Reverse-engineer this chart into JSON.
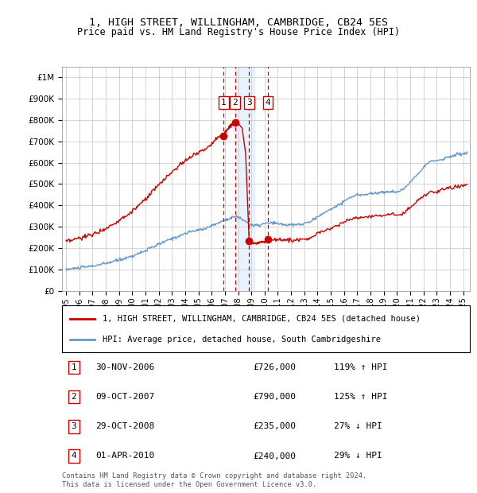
{
  "title": "1, HIGH STREET, WILLINGHAM, CAMBRIDGE, CB24 5ES",
  "subtitle": "Price paid vs. HM Land Registry's House Price Index (HPI)",
  "hpi_label": "HPI: Average price, detached house, South Cambridgeshire",
  "price_label": "1, HIGH STREET, WILLINGHAM, CAMBRIDGE, CB24 5ES (detached house)",
  "footer1": "Contains HM Land Registry data © Crown copyright and database right 2024.",
  "footer2": "This data is licensed under the Open Government Licence v3.0.",
  "transactions": [
    {
      "num": 1,
      "date": "30-NOV-2006",
      "price": 726000,
      "pct": "119%",
      "dir": "↑"
    },
    {
      "num": 2,
      "date": "09-OCT-2007",
      "price": 790000,
      "pct": "125%",
      "dir": "↑"
    },
    {
      "num": 3,
      "date": "29-OCT-2008",
      "price": 235000,
      "pct": "27%",
      "dir": "↓"
    },
    {
      "num": 4,
      "date": "01-APR-2010",
      "price": 240000,
      "pct": "29%",
      "dir": "↓"
    }
  ],
  "transaction_dates_decimal": [
    2006.917,
    2007.775,
    2008.831,
    2010.25
  ],
  "transaction_prices": [
    726000,
    790000,
    235000,
    240000
  ],
  "shade_start": 2007.775,
  "shade_end": 2009.25,
  "ylim": [
    0,
    1050000
  ],
  "xlim_start": 1994.7,
  "xlim_end": 2025.5,
  "price_color": "#cc0000",
  "hpi_color": "#6699cc",
  "bg_color": "#ffffff",
  "grid_color": "#cccccc",
  "hpi_anchors": [
    [
      1995.0,
      100000
    ],
    [
      1996.0,
      108000
    ],
    [
      1997.0,
      116000
    ],
    [
      1998.0,
      128000
    ],
    [
      1999.0,
      145000
    ],
    [
      2000.0,
      163000
    ],
    [
      2001.0,
      188000
    ],
    [
      2002.0,
      218000
    ],
    [
      2003.0,
      245000
    ],
    [
      2004.0,
      268000
    ],
    [
      2004.5,
      278000
    ],
    [
      2005.0,
      285000
    ],
    [
      2005.5,
      292000
    ],
    [
      2006.0,
      305000
    ],
    [
      2006.5,
      318000
    ],
    [
      2007.0,
      332000
    ],
    [
      2007.75,
      348000
    ],
    [
      2008.0,
      345000
    ],
    [
      2008.5,
      328000
    ],
    [
      2009.0,
      308000
    ],
    [
      2009.5,
      305000
    ],
    [
      2010.0,
      315000
    ],
    [
      2010.5,
      318000
    ],
    [
      2011.0,
      315000
    ],
    [
      2011.5,
      310000
    ],
    [
      2012.0,
      308000
    ],
    [
      2012.5,
      310000
    ],
    [
      2013.0,
      315000
    ],
    [
      2013.5,
      325000
    ],
    [
      2014.0,
      348000
    ],
    [
      2014.5,
      365000
    ],
    [
      2015.0,
      382000
    ],
    [
      2015.5,
      400000
    ],
    [
      2016.0,
      420000
    ],
    [
      2016.5,
      438000
    ],
    [
      2017.0,
      448000
    ],
    [
      2017.5,
      452000
    ],
    [
      2018.0,
      455000
    ],
    [
      2018.5,
      458000
    ],
    [
      2019.0,
      462000
    ],
    [
      2019.5,
      465000
    ],
    [
      2020.0,
      462000
    ],
    [
      2020.5,
      475000
    ],
    [
      2021.0,
      510000
    ],
    [
      2021.5,
      545000
    ],
    [
      2022.0,
      580000
    ],
    [
      2022.5,
      605000
    ],
    [
      2023.0,
      610000
    ],
    [
      2023.5,
      618000
    ],
    [
      2024.0,
      628000
    ],
    [
      2024.5,
      638000
    ],
    [
      2025.3,
      645000
    ]
  ],
  "price_anchors_pre1": [
    [
      1995.0,
      228000
    ],
    [
      1996.0,
      246000
    ],
    [
      1997.0,
      264000
    ],
    [
      1998.0,
      292000
    ],
    [
      1999.0,
      330000
    ],
    [
      2000.0,
      371000
    ],
    [
      2001.0,
      427000
    ],
    [
      2002.0,
      495000
    ],
    [
      2003.0,
      556000
    ],
    [
      2004.0,
      609000
    ],
    [
      2004.5,
      631000
    ],
    [
      2005.0,
      647000
    ],
    [
      2005.5,
      663000
    ],
    [
      2006.0,
      692000
    ],
    [
      2006.5,
      722000
    ],
    [
      2006.917,
      726000
    ]
  ],
  "price_anchors_1to2": [
    [
      2006.917,
      726000
    ],
    [
      2007.0,
      740000
    ],
    [
      2007.25,
      758000
    ],
    [
      2007.5,
      775000
    ],
    [
      2007.775,
      790000
    ]
  ],
  "price_anchors_2to3": [
    [
      2007.775,
      790000
    ],
    [
      2008.0,
      785000
    ],
    [
      2008.5,
      747000
    ],
    [
      2008.831,
      235000
    ]
  ],
  "price_anchors_3to4": [
    [
      2008.831,
      235000
    ],
    [
      2009.0,
      224000
    ],
    [
      2009.25,
      222000
    ],
    [
      2009.5,
      224000
    ],
    [
      2009.75,
      228000
    ],
    [
      2010.0,
      232000
    ],
    [
      2010.25,
      240000
    ]
  ],
  "price_anchors_post4": [
    [
      2010.25,
      240000
    ],
    [
      2011.0,
      240000
    ],
    [
      2011.5,
      238000
    ],
    [
      2012.0,
      236000
    ],
    [
      2012.5,
      238000
    ],
    [
      2013.0,
      242000
    ],
    [
      2013.5,
      250000
    ],
    [
      2014.0,
      267000
    ],
    [
      2014.5,
      280000
    ],
    [
      2015.0,
      293000
    ],
    [
      2015.5,
      307000
    ],
    [
      2016.0,
      322000
    ],
    [
      2016.5,
      336000
    ],
    [
      2017.0,
      344000
    ],
    [
      2017.5,
      347000
    ],
    [
      2018.0,
      349000
    ],
    [
      2018.5,
      351000
    ],
    [
      2019.0,
      354000
    ],
    [
      2019.5,
      357000
    ],
    [
      2020.0,
      354000
    ],
    [
      2020.5,
      364000
    ],
    [
      2021.0,
      391000
    ],
    [
      2021.5,
      418000
    ],
    [
      2022.0,
      445000
    ],
    [
      2022.5,
      464000
    ],
    [
      2023.0,
      468000
    ],
    [
      2023.5,
      474000
    ],
    [
      2024.0,
      482000
    ],
    [
      2024.5,
      489000
    ],
    [
      2025.3,
      495000
    ]
  ]
}
